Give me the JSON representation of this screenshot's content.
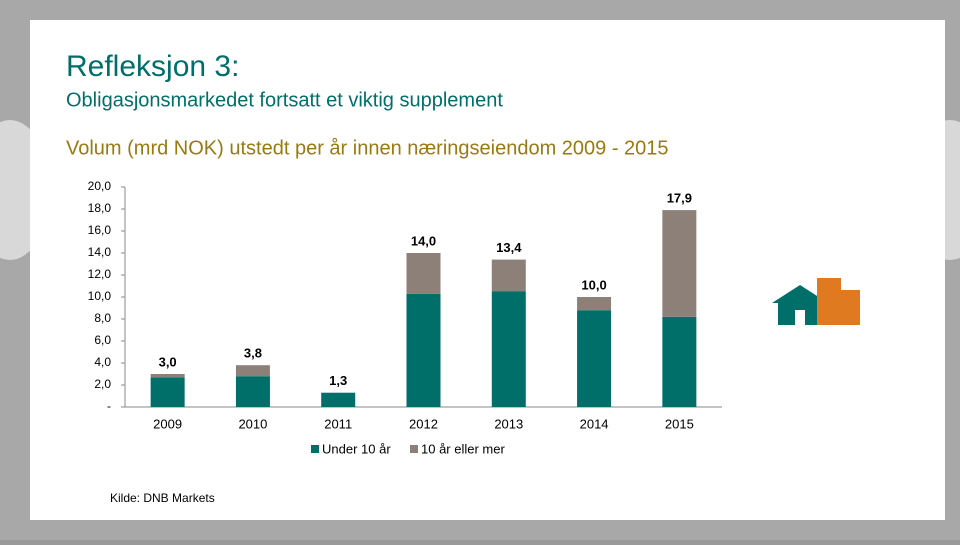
{
  "header": {
    "title": "Refleksjon 3:",
    "subtitle": "Obligasjonsmarkedet fortsatt et viktig supplement"
  },
  "chart_data": {
    "type": "stacked-bar",
    "title": "Volum (mrd NOK) utstedt per år innen næringseiendom 2009 - 2015",
    "categories": [
      "2009",
      "2010",
      "2011",
      "2012",
      "2013",
      "2014",
      "2015"
    ],
    "series": [
      {
        "name": "Under 10 år",
        "color": "#006f6a",
        "values": [
          2.7,
          2.8,
          1.3,
          10.3,
          10.5,
          8.8,
          8.2
        ]
      },
      {
        "name": "10 år eller mer",
        "color": "#8c8079",
        "values": [
          0.3,
          1.0,
          0,
          3.7,
          2.9,
          1.2,
          9.7
        ]
      }
    ],
    "totals": [
      3.0,
      3.8,
      1.3,
      14.0,
      13.4,
      10.0,
      17.9
    ],
    "total_labels": [
      "3,0",
      "3,8",
      "1,3",
      "14,0",
      "13,4",
      "10,0",
      "17,9"
    ],
    "ylim": [
      0,
      20
    ],
    "yticks": [
      {
        "value": 0,
        "label": "-"
      },
      {
        "value": 2,
        "label": "2,0"
      },
      {
        "value": 4,
        "label": "4,0"
      },
      {
        "value": 6,
        "label": "6,0"
      },
      {
        "value": 8,
        "label": "8,0"
      },
      {
        "value": 10,
        "label": "10,0"
      },
      {
        "value": 12,
        "label": "12,0"
      },
      {
        "value": 14,
        "label": "14,0"
      },
      {
        "value": 16,
        "label": "16,0"
      },
      {
        "value": 18,
        "label": "18,0"
      },
      {
        "value": 20,
        "label": "20,0"
      }
    ]
  },
  "source": "Kilde: DNB Markets"
}
